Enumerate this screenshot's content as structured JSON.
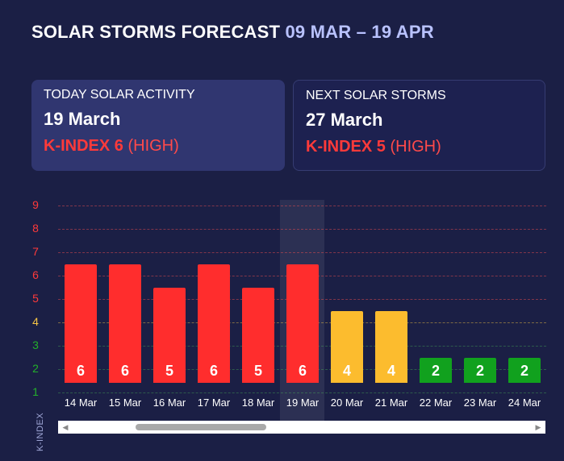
{
  "header": {
    "title": "SOLAR STORMS FORECAST",
    "range": "09 MAR – 19 APR"
  },
  "today": {
    "label": "TODAY SOLAR ACTIVITY",
    "date": "19 March",
    "kindex": "K-INDEX 6",
    "level": "(HIGH)"
  },
  "next": {
    "label": "NEXT SOLAR STORMS",
    "date": "27 March",
    "kindex": "K-INDEX 5",
    "level": "(HIGH)"
  },
  "colors": {
    "high": "#ff2d2d",
    "medium": "#fcbc2e",
    "low": "#11a11e"
  },
  "chart_data": {
    "type": "bar",
    "ylabel": "K-INDEX",
    "ylim": [
      1,
      9
    ],
    "yticks": [
      "1",
      "2",
      "3",
      "4",
      "5",
      "6",
      "7",
      "8",
      "9"
    ],
    "ytick_colors": [
      "#23b02b",
      "#23b02b",
      "#23b02b",
      "#f6c545",
      "#ff3a3a",
      "#ff3a3a",
      "#ff3a3a",
      "#ff3a3a",
      "#ff3a3a"
    ],
    "categories": [
      "14 Mar",
      "15 Mar",
      "16 Mar",
      "17 Mar",
      "18 Mar",
      "19 Mar",
      "20 Mar",
      "21 Mar",
      "22 Mar",
      "23 Mar",
      "24 Mar"
    ],
    "values": [
      6,
      6,
      5,
      6,
      5,
      6,
      4,
      4,
      2,
      2,
      2
    ],
    "value_labels": [
      "6",
      "6",
      "5",
      "6",
      "5",
      "6",
      "4",
      "4",
      "2",
      "2",
      "2"
    ],
    "bar_levels": [
      "high",
      "high",
      "high",
      "high",
      "high",
      "high",
      "medium",
      "medium",
      "low",
      "low",
      "low"
    ],
    "highlighted": "19 Mar"
  },
  "scrollbar": {
    "left_arrow": "◀",
    "right_arrow": "▶"
  }
}
